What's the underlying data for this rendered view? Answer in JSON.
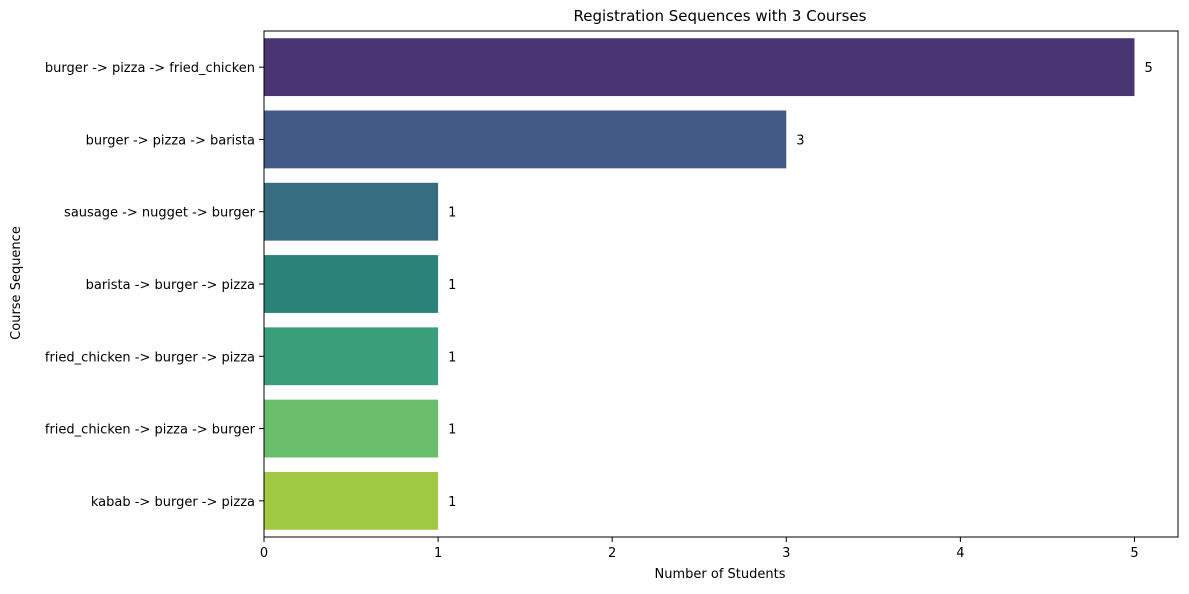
{
  "chart_data": {
    "type": "bar",
    "orientation": "horizontal",
    "title": "Registration Sequences with 3 Courses",
    "xlabel": "Number of Students",
    "ylabel": "Course Sequence",
    "categories": [
      "burger -> pizza -> fried_chicken",
      "burger -> pizza -> barista",
      "sausage -> nugget -> burger",
      "barista -> burger -> pizza",
      "fried_chicken -> burger -> pizza",
      "fried_chicken -> pizza -> burger",
      "kabab -> burger -> pizza"
    ],
    "values": [
      5,
      3,
      1,
      1,
      1,
      1,
      1
    ],
    "data_labels": [
      "5",
      "3",
      "1",
      "1",
      "1",
      "1",
      "1"
    ],
    "colors": [
      "#4a3573",
      "#445a86",
      "#376d81",
      "#2b8279",
      "#3a9e7a",
      "#6abd6a",
      "#a2c944"
    ],
    "xlim": [
      0,
      5.25
    ],
    "xticks": [
      0,
      1,
      2,
      3,
      4,
      5
    ],
    "xtick_labels": [
      "0",
      "1",
      "2",
      "3",
      "4",
      "5"
    ],
    "grid": false,
    "legend": "none",
    "palette": "viridis"
  }
}
